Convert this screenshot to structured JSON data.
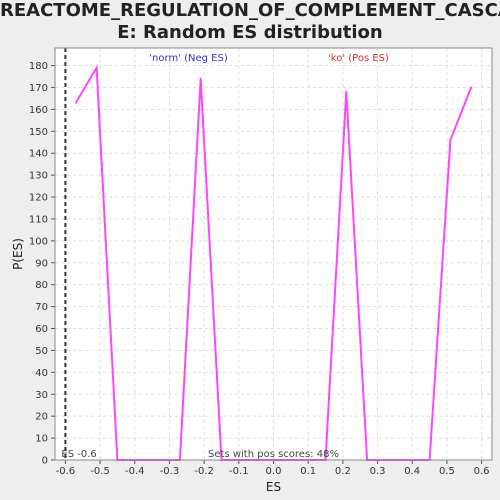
{
  "title_line1": "REACTOME_REGULATION_OF_COMPLEMENT_CASCAD",
  "title_line2": "E: Random ES distribution",
  "colors": {
    "background": "#eeeeee",
    "plot_bg": "#ffffff",
    "line": "#ff44ff",
    "grid": "#dddddd",
    "neg_label": "#3333cc",
    "pos_label": "#cc3333",
    "es_marker": "#333333"
  },
  "chart_data": {
    "type": "line",
    "title": "REACTOME_REGULATION_OF_COMPLEMENT_CASCADE: Random ES distribution",
    "xlabel": "ES",
    "ylabel": "P(ES)",
    "xlim": [
      -0.63,
      0.63
    ],
    "ylim": [
      0,
      188
    ],
    "x_ticks": [
      -0.6,
      -0.5,
      -0.4,
      -0.3,
      -0.2,
      -0.1,
      0.0,
      0.1,
      0.2,
      0.3,
      0.4,
      0.5,
      0.6
    ],
    "x_tick_labels": [
      "-0.6",
      "-0.5",
      "-0.4",
      "-0.3",
      "-0.2",
      "-0.1",
      "0.0",
      "0.1",
      "0.2",
      "0.3",
      "0.4",
      "0.5",
      "0.6"
    ],
    "y_ticks": [
      0,
      10,
      20,
      30,
      40,
      50,
      60,
      70,
      80,
      90,
      100,
      110,
      120,
      130,
      140,
      150,
      160,
      170,
      180
    ],
    "grid": true,
    "series": [
      {
        "x": [
          -0.57,
          -0.51,
          -0.45,
          -0.39,
          -0.33,
          -0.27,
          -0.21,
          -0.15,
          -0.09,
          -0.03,
          0.03,
          0.09,
          0.15,
          0.21,
          0.27,
          0.33,
          0.39,
          0.45,
          0.51,
          0.57
        ],
        "y": [
          163,
          179,
          0,
          0,
          0,
          0,
          174,
          0,
          0,
          0,
          0,
          0,
          0,
          168,
          0,
          0,
          0,
          0,
          146,
          170
        ]
      }
    ],
    "es_value": -0.6,
    "es_label": "ES -0.6",
    "neg_label": "'norm' (Neg ES)",
    "pos_label": "'ko' (Pos ES)",
    "footnote": "Sets with pos scores: 48%"
  }
}
